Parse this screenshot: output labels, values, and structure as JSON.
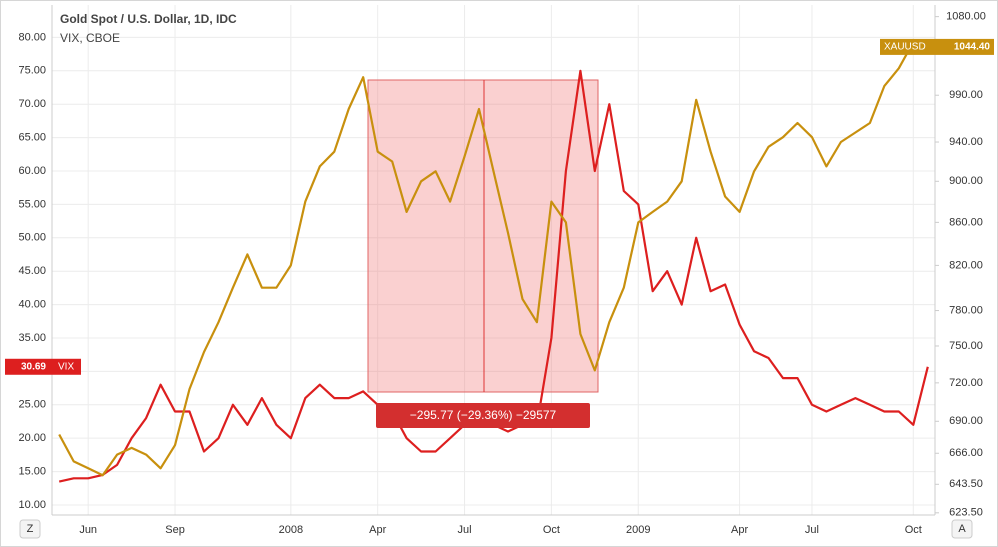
{
  "chart_data": {
    "type": "line",
    "title": "Gold Spot / U.S. Dollar, 1D, IDC",
    "subtitle": "VIX, CBOE",
    "measure_label": "−295.77 (−29.36%) −29577",
    "categories": [
      null,
      null,
      "Jun",
      null,
      null,
      null,
      null,
      null,
      "Sep",
      null,
      null,
      null,
      null,
      null,
      null,
      null,
      "2008",
      null,
      null,
      null,
      null,
      null,
      "Apr",
      null,
      null,
      null,
      null,
      null,
      "Jul",
      null,
      null,
      null,
      null,
      null,
      "Oct",
      null,
      null,
      null,
      null,
      null,
      "2009",
      null,
      null,
      null,
      null,
      null,
      null,
      "Apr",
      null,
      null,
      null,
      null,
      "Jul",
      null,
      null,
      null,
      null,
      null,
      null,
      "Oct",
      null
    ],
    "series": [
      {
        "name": "VIX",
        "color": "#dd1f1f",
        "axis": "y",
        "values": [
          13.5,
          14,
          14,
          14.5,
          16,
          20,
          23,
          28,
          24,
          24,
          18,
          20,
          25,
          22,
          26,
          22,
          20,
          26,
          28,
          26,
          26,
          27,
          25,
          24,
          20,
          18,
          18,
          20,
          22,
          24,
          22,
          21,
          22,
          22,
          35,
          60,
          75,
          60,
          70,
          57,
          55,
          42,
          45,
          40,
          50,
          42,
          43,
          37,
          33,
          32,
          29,
          29,
          25,
          24,
          25,
          26,
          25,
          24,
          24,
          22,
          30.69
        ]
      },
      {
        "name": "XAUUSD",
        "color": "#c8900e",
        "axis": "y2",
        "values": [
          680,
          660,
          655,
          650,
          665,
          670,
          665,
          655,
          672,
          715,
          745,
          770,
          800,
          830,
          800,
          800,
          820,
          880,
          915,
          930,
          975,
          1010,
          930,
          920,
          870,
          900,
          910,
          880,
          925,
          975,
          910,
          850,
          790,
          770,
          880,
          860,
          760,
          730,
          770,
          800,
          860,
          870,
          880,
          900,
          985,
          930,
          885,
          870,
          910,
          935,
          945,
          960,
          945,
          915,
          940,
          950,
          960,
          1000,
          1020,
          1050,
          1044.4
        ],
        "value_labels": [
          null,
          null,
          null,
          null,
          null,
          null,
          null,
          null,
          null,
          null,
          null,
          null,
          null,
          null,
          null,
          null,
          null,
          null,
          null,
          null,
          null,
          null,
          null,
          null,
          null,
          null,
          null,
          null,
          null,
          null,
          null,
          null,
          null,
          null,
          null,
          null,
          null,
          null,
          null,
          null,
          null,
          null,
          null,
          null,
          null,
          null,
          null,
          null,
          null,
          null,
          null,
          null,
          null,
          null,
          null,
          null,
          null,
          null,
          null,
          null,
          "1044.40"
        ]
      }
    ],
    "ylim": [
      8.5,
      84.85
    ],
    "yticks": [
      {
        "value": 10,
        "label": "10.00"
      },
      {
        "value": 15,
        "label": "15.00"
      },
      {
        "value": 20,
        "label": "20.00"
      },
      {
        "value": 25,
        "label": "25.00"
      },
      {
        "value": 30,
        "label": "30.00"
      },
      {
        "value": 35,
        "label": "35.00"
      },
      {
        "value": 40,
        "label": "40.00"
      },
      {
        "value": 45,
        "label": "45.00"
      },
      {
        "value": 50,
        "label": "50.00"
      },
      {
        "value": 55,
        "label": "55.00"
      },
      {
        "value": 60,
        "label": "60.00"
      },
      {
        "value": 65,
        "label": "65.00"
      },
      {
        "value": 70,
        "label": "70.00"
      },
      {
        "value": 75,
        "label": "75.00"
      },
      {
        "value": 80,
        "label": "80.00"
      }
    ],
    "y2lim": [
      622,
      1094
    ],
    "y2scale": "log",
    "y2ticks": [
      {
        "value": 623.5,
        "label": "623.50"
      },
      {
        "value": 643.5,
        "label": "643.50"
      },
      {
        "value": 666,
        "label": "666.00"
      },
      {
        "value": 690,
        "label": "690.00"
      },
      {
        "value": 720,
        "label": "720.00"
      },
      {
        "value": 750,
        "label": "750.00"
      },
      {
        "value": 780,
        "label": "780.00"
      },
      {
        "value": 820,
        "label": "820.00"
      },
      {
        "value": 860,
        "label": "860.00"
      },
      {
        "value": 900,
        "label": "900.00"
      },
      {
        "value": 940,
        "label": "940.00"
      },
      {
        "value": 990,
        "label": "990.00"
      },
      {
        "value": 1080,
        "label": "1080.00"
      }
    ],
    "grid": true,
    "buttons": [
      "Z",
      "A"
    ]
  }
}
